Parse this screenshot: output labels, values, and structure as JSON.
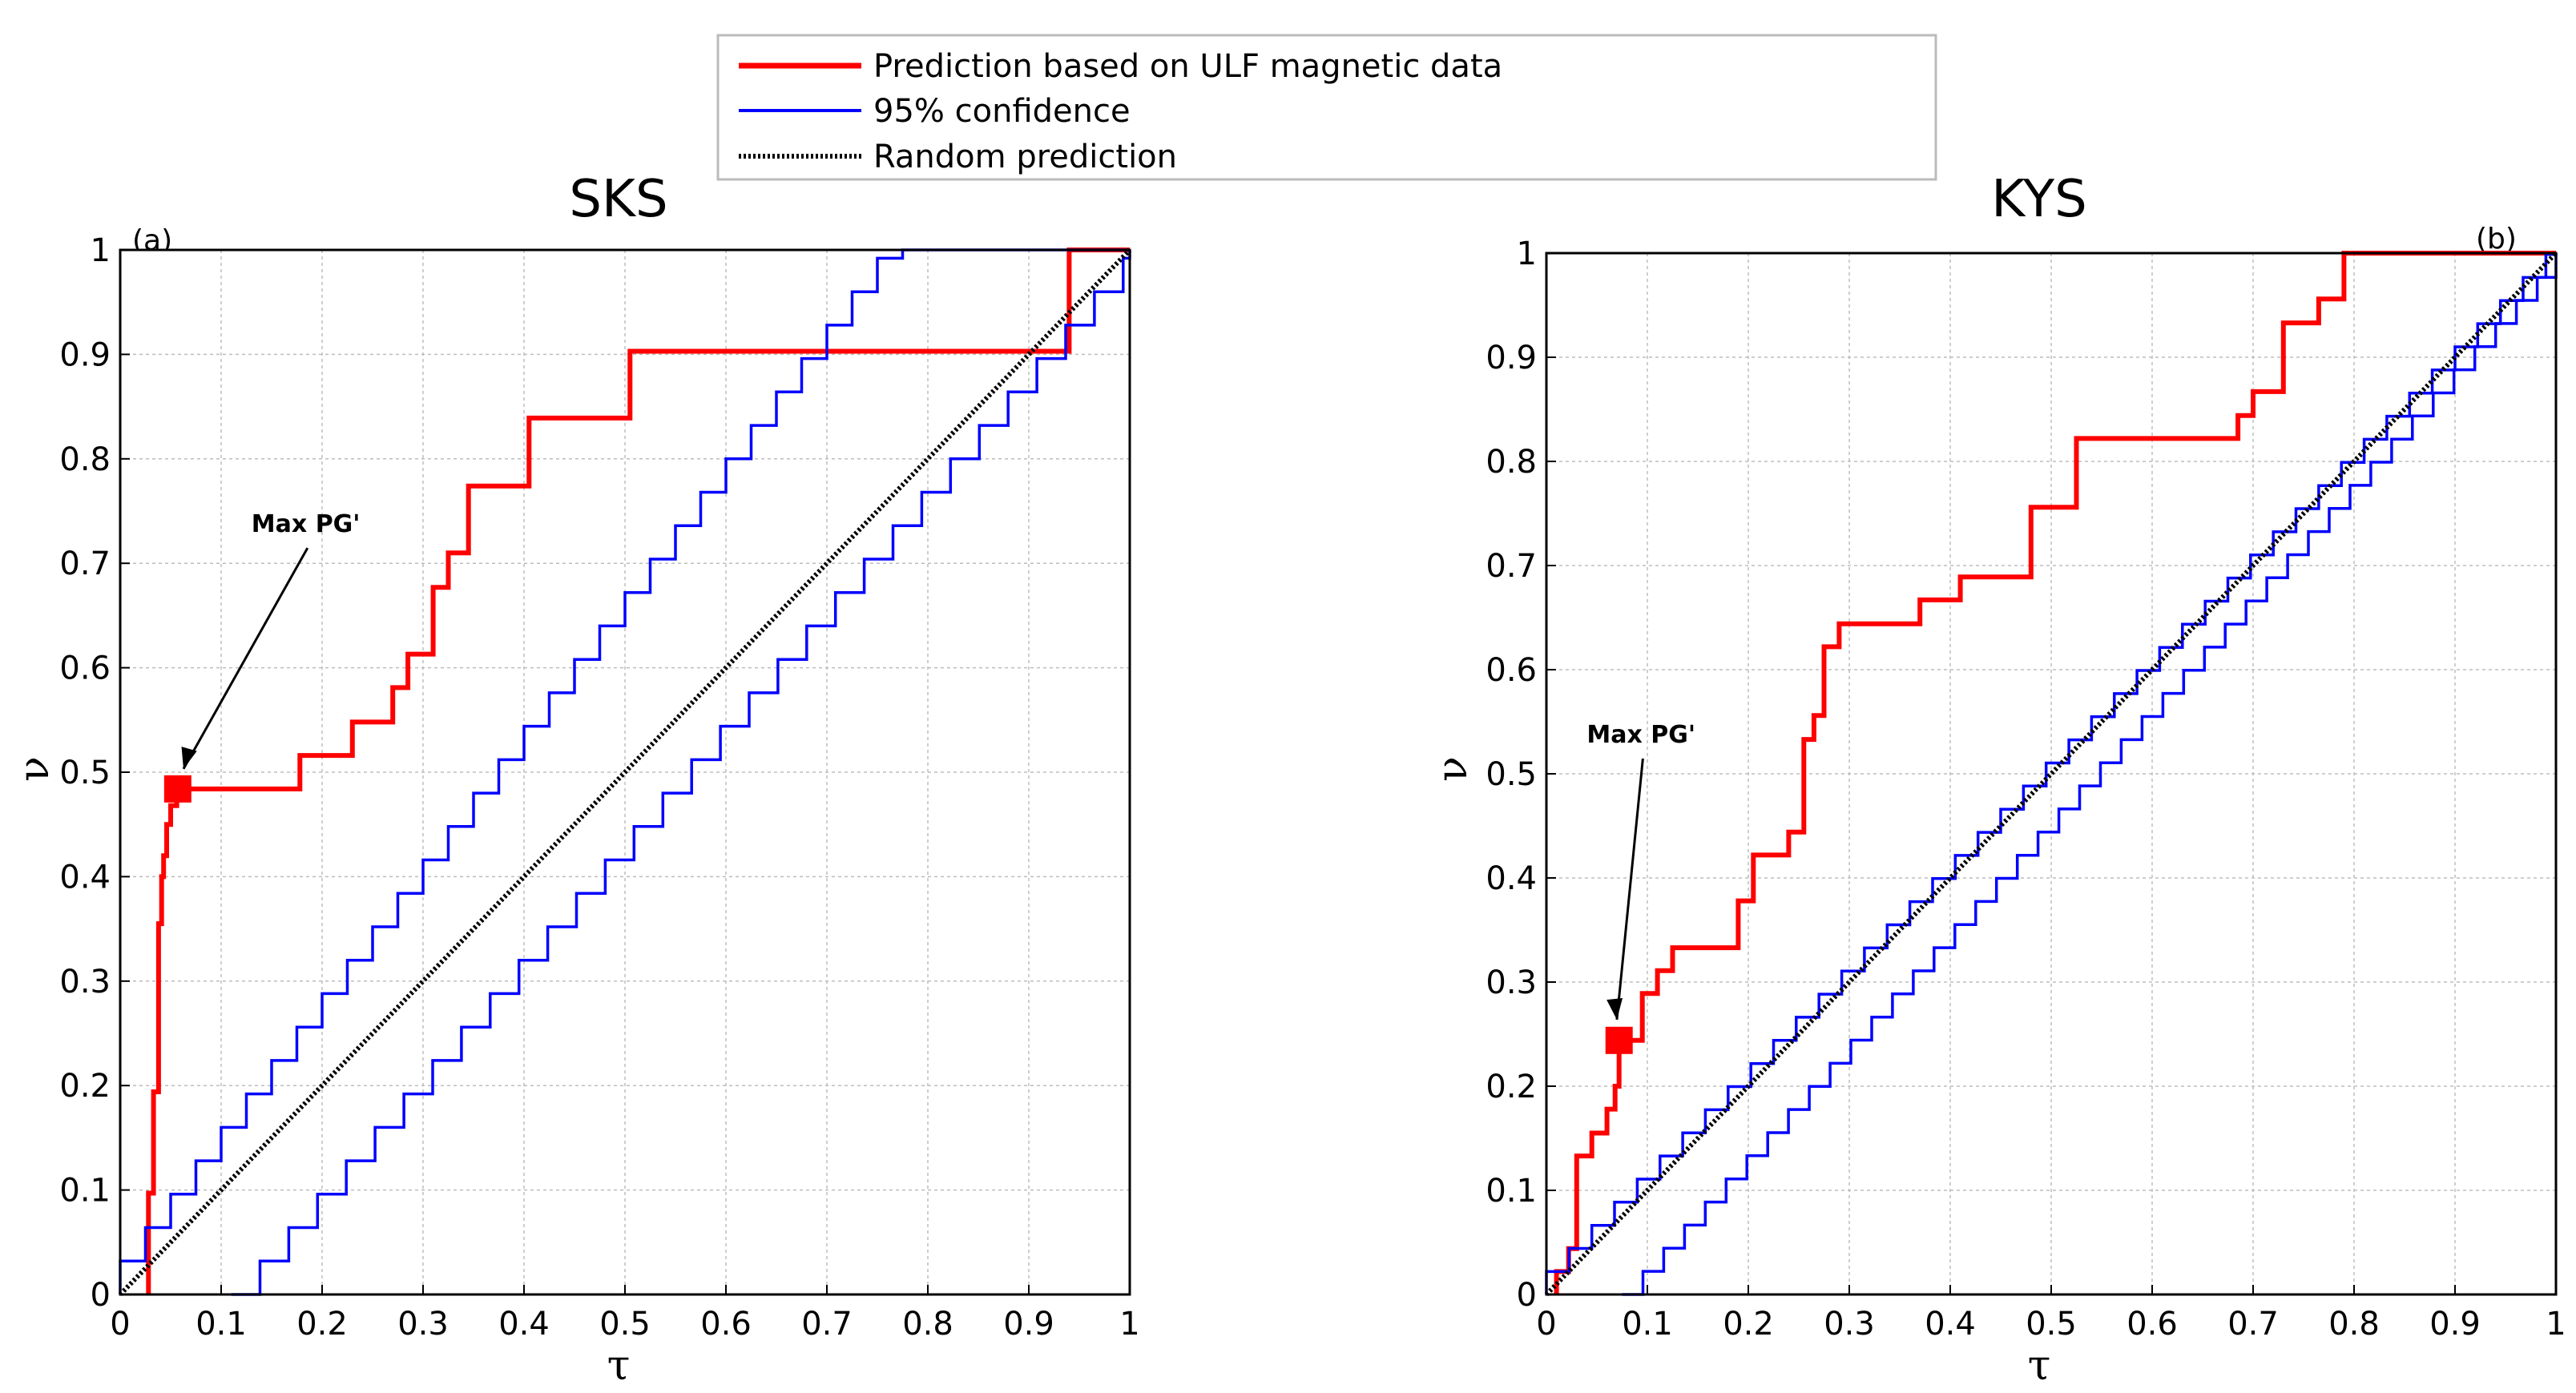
{
  "legend": {
    "items": [
      {
        "label": "Prediction based on ULF magnetic data",
        "color": "#ff0000",
        "style": "solid"
      },
      {
        "label": "95% confidence",
        "color": "#0000ff",
        "style": "solid"
      },
      {
        "label": "Random prediction",
        "color": "#000000",
        "style": "dotted"
      }
    ]
  },
  "chart_data": [
    {
      "type": "line",
      "panel_tag": "(a)",
      "title": "SKS",
      "xlabel": "τ",
      "ylabel": "ν",
      "xlim": [
        0,
        1
      ],
      "ylim": [
        0,
        1
      ],
      "grid": true,
      "xticks": [
        "0",
        "0.1",
        "0.2",
        "0.3",
        "0.4",
        "0.5",
        "0.6",
        "0.7",
        "0.8",
        "0.9",
        "1"
      ],
      "yticks": [
        "0",
        "0.1",
        "0.2",
        "0.3",
        "0.4",
        "0.5",
        "0.6",
        "0.7",
        "0.8",
        "0.9",
        "1"
      ],
      "annotation": {
        "text": "Max PG'",
        "point": [
          0.057,
          0.484
        ],
        "text_at": [
          0.13,
          0.73
        ]
      },
      "series": [
        {
          "name": "Prediction based on ULF magnetic data",
          "color": "#ff0000",
          "x": [
            0.028,
            0.028,
            0.033,
            0.033,
            0.038,
            0.038,
            0.041,
            0.041,
            0.043,
            0.043,
            0.046,
            0.046,
            0.05,
            0.05,
            0.056,
            0.056,
            0.178,
            0.178,
            0.23,
            0.23,
            0.27,
            0.27,
            0.285,
            0.285,
            0.31,
            0.31,
            0.325,
            0.325,
            0.345,
            0.345,
            0.405,
            0.405,
            0.505,
            0.505,
            0.52,
            0.52,
            0.94,
            0.94,
            1
          ],
          "y": [
            0,
            0.097,
            0.097,
            0.194,
            0.194,
            0.355,
            0.355,
            0.4,
            0.4,
            0.42,
            0.42,
            0.45,
            0.45,
            0.468,
            0.468,
            0.484,
            0.484,
            0.516,
            0.516,
            0.548,
            0.548,
            0.581,
            0.581,
            0.613,
            0.613,
            0.677,
            0.677,
            0.71,
            0.71,
            0.774,
            0.774,
            0.839,
            0.839,
            0.903,
            0.903,
            0.903,
            0.903,
            1,
            1
          ]
        },
        {
          "name": "95% confidence (upper)",
          "color": "#0000ff",
          "steps": {
            "x0": 0.0,
            "y0": 0.032,
            "dx": 0.025,
            "dy": 0.032,
            "count": 31
          }
        },
        {
          "name": "95% confidence (lower)",
          "color": "#0000ff",
          "steps": {
            "x0": 0.11,
            "y0": 0.0,
            "dx": 0.0285,
            "dy": 0.032,
            "count": 32
          }
        },
        {
          "name": "Random prediction",
          "color": "#000000",
          "x": [
            0,
            1
          ],
          "y": [
            0,
            1
          ]
        }
      ]
    },
    {
      "type": "line",
      "panel_tag": "(b)",
      "title": "KYS",
      "xlabel": "τ",
      "ylabel": "ν",
      "xlim": [
        0,
        1
      ],
      "ylim": [
        0,
        1
      ],
      "grid": true,
      "xticks": [
        "0",
        "0.1",
        "0.2",
        "0.3",
        "0.4",
        "0.5",
        "0.6",
        "0.7",
        "0.8",
        "0.9",
        "1"
      ],
      "yticks": [
        "0",
        "0.1",
        "0.2",
        "0.3",
        "0.4",
        "0.5",
        "0.6",
        "0.7",
        "0.8",
        "0.9",
        "1"
      ],
      "annotation": {
        "text": "Max PG'",
        "point": [
          0.072,
          0.244
        ],
        "text_at": [
          0.04,
          0.53
        ]
      },
      "series": [
        {
          "name": "Prediction based on ULF magnetic data",
          "color": "#ff0000",
          "x": [
            0.01,
            0.01,
            0.022,
            0.022,
            0.03,
            0.03,
            0.045,
            0.045,
            0.06,
            0.06,
            0.068,
            0.068,
            0.072,
            0.072,
            0.095,
            0.095,
            0.11,
            0.11,
            0.125,
            0.125,
            0.19,
            0.19,
            0.205,
            0.205,
            0.24,
            0.24,
            0.255,
            0.255,
            0.265,
            0.265,
            0.275,
            0.275,
            0.29,
            0.29,
            0.37,
            0.37,
            0.41,
            0.41,
            0.48,
            0.48,
            0.525,
            0.525,
            0.685,
            0.685,
            0.7,
            0.7,
            0.73,
            0.73,
            0.765,
            0.765,
            0.79,
            0.79,
            0.97,
            0.97,
            1
          ],
          "y": [
            0,
            0.022,
            0.022,
            0.044,
            0.044,
            0.133,
            0.133,
            0.155,
            0.155,
            0.178,
            0.178,
            0.2,
            0.2,
            0.244,
            0.244,
            0.289,
            0.289,
            0.311,
            0.311,
            0.333,
            0.333,
            0.378,
            0.378,
            0.422,
            0.422,
            0.444,
            0.444,
            0.533,
            0.533,
            0.556,
            0.556,
            0.622,
            0.622,
            0.644,
            0.644,
            0.667,
            0.667,
            0.689,
            0.689,
            0.756,
            0.756,
            0.822,
            0.822,
            0.844,
            0.844,
            0.867,
            0.867,
            0.933,
            0.933,
            0.956,
            0.956,
            1,
            1,
            1,
            1
          ]
        },
        {
          "name": "95% confidence (upper)",
          "color": "#0000ff",
          "steps": {
            "x0": 0.0,
            "y0": 0.022,
            "dx": 0.0225,
            "dy": 0.0222,
            "count": 45
          }
        },
        {
          "name": "95% confidence (lower)",
          "color": "#0000ff",
          "steps": {
            "x0": 0.075,
            "y0": 0.0,
            "dx": 0.0206,
            "dy": 0.0222,
            "count": 46
          }
        },
        {
          "name": "Random prediction",
          "color": "#000000",
          "x": [
            0,
            1
          ],
          "y": [
            0,
            1
          ]
        }
      ]
    }
  ]
}
